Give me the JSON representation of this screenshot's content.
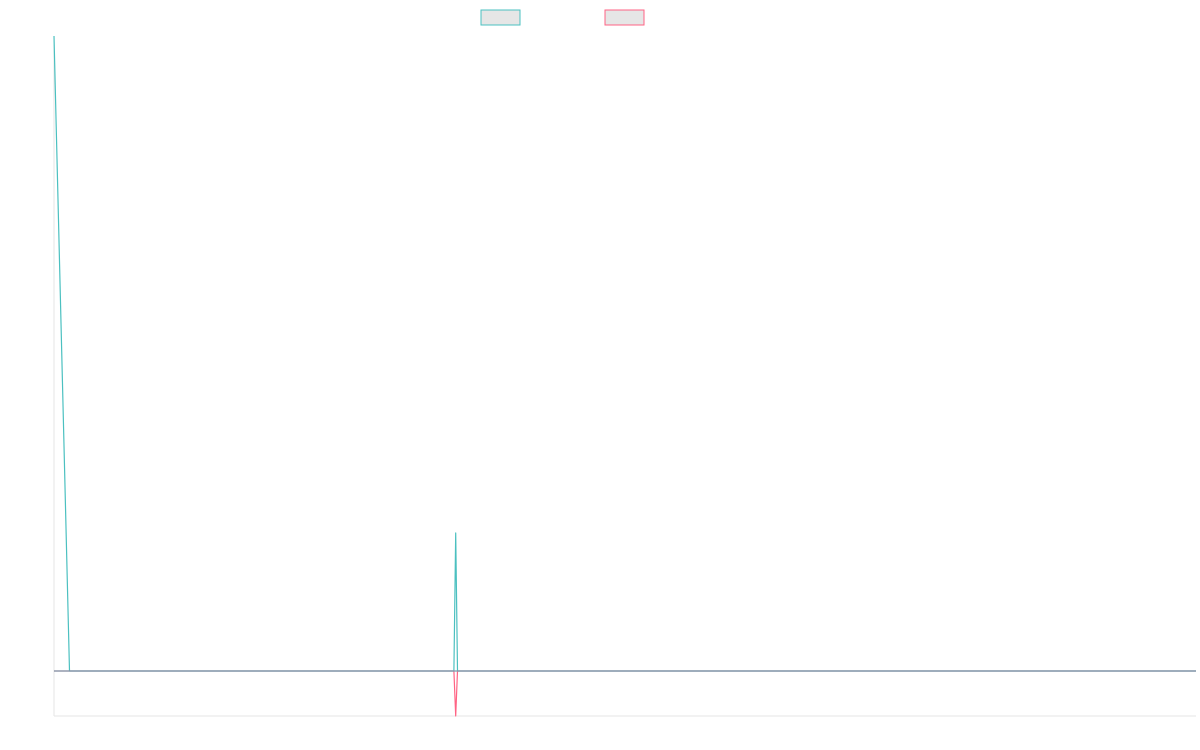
{
  "chart_data": {
    "type": "line",
    "title": "",
    "xlabel": "",
    "ylabel": "",
    "grid": false,
    "legend_position": "top",
    "x": [
      0,
      0.43,
      1.45,
      1.5,
      1.55,
      1.6,
      11.1,
      11.15,
      11.2,
      11.3,
      31.7
    ],
    "xlim": [
      0,
      31.7
    ],
    "ylim": [
      -45,
      635
    ],
    "series": [
      {
        "name": "",
        "color": "#4bc0c0",
        "fill": "#e6e6e6",
        "values": [
          635,
          0,
          0,
          0,
          0,
          0,
          0,
          138,
          0,
          0,
          0
        ]
      },
      {
        "name": "",
        "color": "#ff6384",
        "fill": "#e6e6e6",
        "values": [
          0,
          0,
          0,
          0,
          0,
          0,
          0,
          -45,
          0,
          0,
          0
        ]
      }
    ]
  }
}
